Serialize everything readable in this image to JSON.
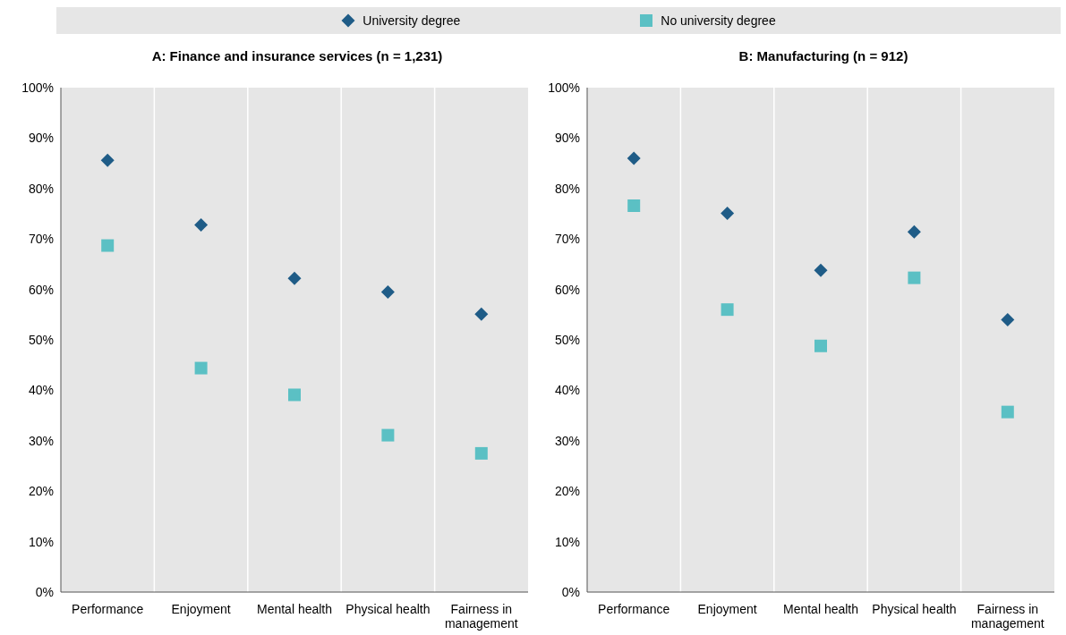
{
  "chart_data": [
    {
      "type": "scatter",
      "title": "A: Finance and insurance services (n = 1,231)",
      "categories": [
        "Performance",
        "Enjoyment",
        "Mental health",
        "Physical health",
        "Fairness in management"
      ],
      "ylim": [
        0,
        100
      ],
      "yticks": [
        {
          "value": 0,
          "label": "0%"
        },
        {
          "value": 10,
          "label": "10%"
        },
        {
          "value": 20,
          "label": "20%"
        },
        {
          "value": 30,
          "label": "30%"
        },
        {
          "value": 40,
          "label": "40%"
        },
        {
          "value": 50,
          "label": "50%"
        },
        {
          "value": 60,
          "label": "60%"
        },
        {
          "value": 70,
          "label": "70%"
        },
        {
          "value": 80,
          "label": "80%"
        },
        {
          "value": 90,
          "label": "90%"
        },
        {
          "value": 100,
          "label": "100%"
        }
      ],
      "grid": "x",
      "legend": "top",
      "series": [
        {
          "name": "University degree",
          "color": "#1f5c87",
          "marker": "diamond",
          "values": [
            85.6,
            72.8,
            62.2,
            59.5,
            55.1
          ]
        },
        {
          "name": "No university degree",
          "color": "#5bc0c4",
          "marker": "square",
          "values": [
            68.7,
            44.4,
            39.1,
            31.1,
            27.5
          ]
        }
      ]
    },
    {
      "type": "scatter",
      "title": "B: Manufacturing (n = 912)",
      "categories": [
        "Performance",
        "Enjoyment",
        "Mental health",
        "Physical health",
        "Fairness in management"
      ],
      "ylim": [
        0,
        100
      ],
      "yticks": [
        {
          "value": 0,
          "label": "0%"
        },
        {
          "value": 10,
          "label": "10%"
        },
        {
          "value": 20,
          "label": "20%"
        },
        {
          "value": 30,
          "label": "30%"
        },
        {
          "value": 40,
          "label": "40%"
        },
        {
          "value": 50,
          "label": "50%"
        },
        {
          "value": 60,
          "label": "60%"
        },
        {
          "value": 70,
          "label": "70%"
        },
        {
          "value": 80,
          "label": "80%"
        },
        {
          "value": 90,
          "label": "90%"
        },
        {
          "value": 100,
          "label": "100%"
        }
      ],
      "grid": "x",
      "series": [
        {
          "color": "#1f5c87",
          "marker": "diamond",
          "values": [
            86,
            75.1,
            63.8,
            71.4,
            54
          ]
        },
        {
          "color": "#5bc0c4",
          "marker": "square",
          "values": [
            76.6,
            56,
            48.8,
            62.3,
            35.7
          ]
        }
      ]
    }
  ]
}
